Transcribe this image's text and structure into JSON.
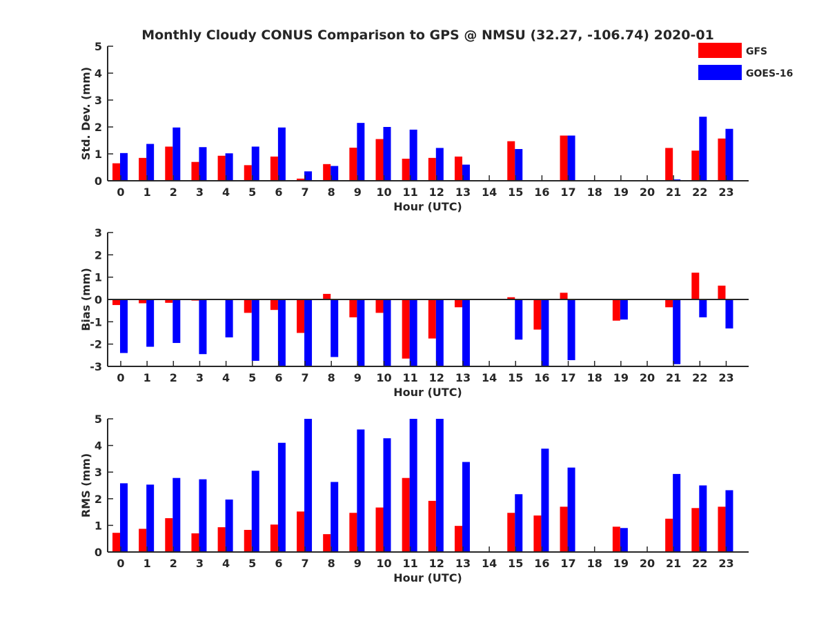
{
  "title": "Monthly Cloudy CONUS Comparison to GPS @ NMSU (32.27, -106.74) 2020-01",
  "legend": [
    {
      "name": "GFS",
      "color": "#ff0000"
    },
    {
      "name": "GOES-16",
      "color": "#0000ff"
    }
  ],
  "colors": {
    "gfs": "#ff0000",
    "goes": "#0000ff",
    "axis": "#262626",
    "background": "#ffffff"
  },
  "chart_data": [
    {
      "type": "bar",
      "xlabel": "Hour (UTC)",
      "ylabel": "Std. Dev. (mm)",
      "ylim": [
        0,
        5
      ],
      "yticks": [
        0,
        1,
        2,
        3,
        4,
        5
      ],
      "categories": [
        "0",
        "1",
        "2",
        "3",
        "4",
        "5",
        "6",
        "7",
        "8",
        "9",
        "10",
        "11",
        "12",
        "13",
        "14",
        "15",
        "16",
        "17",
        "18",
        "19",
        "20",
        "21",
        "22",
        "23"
      ],
      "grid": false,
      "series": [
        {
          "name": "GFS",
          "values": [
            0.65,
            0.85,
            1.27,
            0.7,
            0.93,
            0.58,
            0.9,
            0.08,
            0.62,
            1.23,
            1.55,
            0.82,
            0.85,
            0.9,
            0,
            1.47,
            0,
            1.68,
            0,
            0,
            0,
            1.22,
            1.12,
            1.57
          ]
        },
        {
          "name": "GOES-16",
          "values": [
            1.03,
            1.37,
            1.98,
            1.25,
            1.02,
            1.27,
            1.98,
            0.35,
            0.55,
            2.15,
            2.0,
            1.9,
            1.22,
            0.6,
            0,
            1.18,
            0,
            1.68,
            0,
            0,
            0,
            0.05,
            2.38,
            1.93
          ]
        }
      ]
    },
    {
      "type": "bar",
      "xlabel": "Hour (UTC)",
      "ylabel": "Bias (mm)",
      "ylim": [
        -3,
        3
      ],
      "yticks": [
        -3,
        -2,
        -1,
        0,
        1,
        2,
        3
      ],
      "categories": [
        "0",
        "1",
        "2",
        "3",
        "4",
        "5",
        "6",
        "7",
        "8",
        "9",
        "10",
        "11",
        "12",
        "13",
        "14",
        "15",
        "16",
        "17",
        "18",
        "19",
        "20",
        "21",
        "22",
        "23"
      ],
      "grid": false,
      "series": [
        {
          "name": "GFS",
          "values": [
            -0.25,
            -0.17,
            -0.15,
            -0.05,
            0.02,
            -0.6,
            -0.47,
            -1.5,
            0.25,
            -0.8,
            -0.6,
            -2.65,
            -1.75,
            -0.35,
            0,
            0.1,
            -1.35,
            0.3,
            0,
            -0.95,
            0,
            -0.35,
            1.2,
            0.62
          ]
        },
        {
          "name": "GOES-16",
          "values": [
            -2.4,
            -2.12,
            -1.95,
            -2.45,
            -1.7,
            -2.75,
            -3.0,
            -3.0,
            -2.58,
            -3.0,
            -3.0,
            -3.0,
            -3.0,
            -3.0,
            0,
            -1.8,
            -3.0,
            -2.72,
            0,
            -0.9,
            0,
            -2.9,
            -0.8,
            -1.3
          ]
        }
      ]
    },
    {
      "type": "bar",
      "xlabel": "Hour (UTC)",
      "ylabel": "RMS (mm)",
      "ylim": [
        0,
        5
      ],
      "yticks": [
        0,
        1,
        2,
        3,
        4,
        5
      ],
      "categories": [
        "0",
        "1",
        "2",
        "3",
        "4",
        "5",
        "6",
        "7",
        "8",
        "9",
        "10",
        "11",
        "12",
        "13",
        "14",
        "15",
        "16",
        "17",
        "18",
        "19",
        "20",
        "21",
        "22",
        "23"
      ],
      "grid": false,
      "series": [
        {
          "name": "GFS",
          "values": [
            0.72,
            0.87,
            1.27,
            0.7,
            0.93,
            0.83,
            1.03,
            1.52,
            0.67,
            1.47,
            1.67,
            2.78,
            1.92,
            0.98,
            0,
            1.47,
            1.37,
            1.7,
            0,
            0.95,
            0,
            1.25,
            1.65,
            1.7
          ]
        },
        {
          "name": "GOES-16",
          "values": [
            2.58,
            2.53,
            2.78,
            2.73,
            1.97,
            3.05,
            4.1,
            5.0,
            2.63,
            4.6,
            4.27,
            5.0,
            5.0,
            3.38,
            0,
            2.17,
            3.88,
            3.17,
            0,
            0.9,
            0,
            2.93,
            2.5,
            2.32
          ]
        }
      ]
    }
  ]
}
